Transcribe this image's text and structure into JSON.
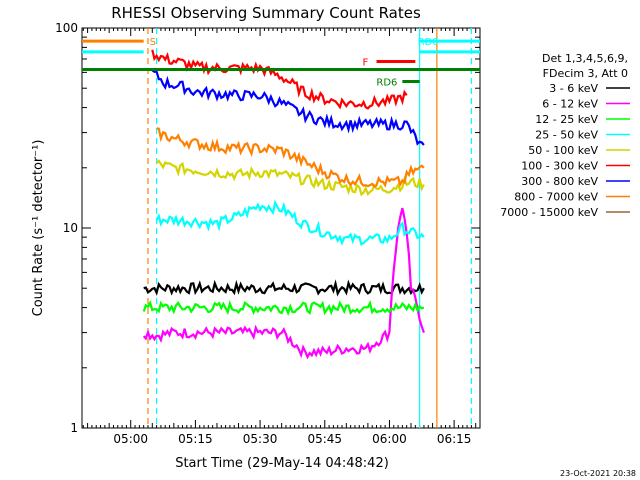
{
  "chart_data": {
    "type": "line",
    "title": "RHESSI Observing Summary Count Rates",
    "xlabel": "Start Time (29-May-14 04:48:42)",
    "ylabel": "Count Rate (s⁻¹ detector⁻¹)",
    "y_scale": "log",
    "ylim": [
      1,
      100
    ],
    "xlim": [
      "04:48:42",
      "06:21:00"
    ],
    "x_ticks": [
      "05:00",
      "05:15",
      "05:30",
      "05:45",
      "06:00",
      "06:15"
    ],
    "y_ticks": [
      "1",
      "10",
      "100"
    ],
    "legend": {
      "placement": "right",
      "header": [
        "Det 1,3,4,5,6,9,",
        "FDecim 3, Att 0"
      ]
    },
    "series": [
      {
        "name": "3 - 6 keV",
        "color": "#000000",
        "x": [
          "05:03",
          "05:06",
          "05:10",
          "05:15",
          "05:20",
          "05:25",
          "05:30",
          "05:35",
          "05:40",
          "05:45",
          "05:50",
          "05:55",
          "06:00",
          "06:05",
          "06:08"
        ],
        "y": [
          5,
          5,
          5,
          5,
          5,
          5,
          5,
          5,
          5,
          5,
          5,
          5,
          5,
          5,
          5
        ]
      },
      {
        "name": "6 - 12 keV",
        "color": "#ff00ff",
        "x": [
          "05:03",
          "05:06",
          "05:10",
          "05:15",
          "05:20",
          "05:25",
          "05:30",
          "05:35",
          "05:40",
          "05:45",
          "05:50",
          "05:55",
          "06:00",
          "06:03",
          "06:05",
          "06:08"
        ],
        "y": [
          3,
          2.9,
          3,
          3,
          3,
          3,
          3,
          3,
          2.4,
          2.4,
          2.5,
          2.5,
          3,
          13,
          5,
          3
        ]
      },
      {
        "name": "12 - 25 keV",
        "color": "#00ff00",
        "x": [
          "05:03",
          "05:06",
          "05:10",
          "05:15",
          "05:20",
          "05:25",
          "05:30",
          "05:35",
          "05:40",
          "05:45",
          "05:50",
          "05:55",
          "06:00",
          "06:05",
          "06:08"
        ],
        "y": [
          4,
          4,
          4,
          4,
          4,
          4,
          4,
          4,
          4,
          4,
          4,
          4,
          4,
          4,
          4
        ]
      },
      {
        "name": "25 - 50 keV",
        "color": "#00ffff",
        "x": [
          "05:06",
          "05:10",
          "05:15",
          "05:20",
          "05:25",
          "05:30",
          "05:35",
          "05:40",
          "05:45",
          "05:50",
          "05:55",
          "06:00",
          "06:03",
          "06:05",
          "06:08"
        ],
        "y": [
          11,
          11,
          10.8,
          10.5,
          11.5,
          13,
          12.5,
          10.5,
          9.5,
          8.8,
          8.8,
          8.8,
          10,
          9.5,
          9
        ]
      },
      {
        "name": "50 - 100 keV",
        "color": "#d4d400",
        "x": [
          "05:06",
          "05:10",
          "05:15",
          "05:20",
          "05:25",
          "05:30",
          "05:35",
          "05:40",
          "05:45",
          "05:50",
          "05:55",
          "06:00",
          "06:03",
          "06:05",
          "06:08"
        ],
        "y": [
          21,
          20,
          19.5,
          19,
          18.5,
          19,
          18.5,
          17.5,
          16.5,
          16,
          15.5,
          15.8,
          16.5,
          17,
          16.5
        ]
      },
      {
        "name": "100 - 300 keV",
        "color": "#ff0000",
        "x": [
          "05:05",
          "05:08",
          "05:12",
          "05:15",
          "05:20",
          "05:25",
          "05:30",
          "05:35",
          "05:40",
          "05:45",
          "05:50",
          "05:55",
          "06:00",
          "06:04"
        ],
        "y": [
          75,
          70,
          67,
          64,
          63,
          63,
          63,
          57,
          48,
          44,
          42,
          42,
          43,
          46
        ]
      },
      {
        "name": "300 - 800 keV",
        "color": "#0000ff",
        "x": [
          "05:05",
          "05:08",
          "05:12",
          "05:15",
          "05:20",
          "05:25",
          "05:30",
          "05:35",
          "05:40",
          "05:45",
          "05:50",
          "05:55",
          "06:00",
          "06:04",
          "06:07",
          "06:08"
        ],
        "y": [
          60,
          53,
          51,
          48,
          47,
          46,
          46,
          42,
          37,
          34,
          33,
          33,
          33,
          33,
          26,
          26
        ]
      },
      {
        "name": "800 - 7000 keV",
        "color": "#ff8000",
        "x": [
          "05:06",
          "05:10",
          "05:15",
          "05:20",
          "05:25",
          "05:30",
          "05:35",
          "05:40",
          "05:45",
          "05:50",
          "05:55",
          "06:00",
          "06:03",
          "06:05",
          "06:08"
        ],
        "y": [
          30,
          28,
          26.5,
          25.5,
          25,
          25,
          24.5,
          21.5,
          19,
          17.5,
          17,
          17,
          17,
          19,
          20
        ]
      },
      {
        "name": "7000 - 15000 keV",
        "color": "#996633",
        "x": [],
        "y": []
      }
    ],
    "markers": {
      "top_bars": [
        {
          "label": "S",
          "color": "#ff8000",
          "x_start": "04:48:42",
          "x_end": "05:03"
        },
        {
          "label": "F",
          "color": "#ff0000",
          "x_start": "05:57",
          "x_end": "06:06"
        },
        {
          "label": "RD0",
          "color": "#00ffff",
          "x_start": "06:07",
          "x_end": "06:21"
        },
        {
          "label": "RD6",
          "color": "#008000",
          "x_start": "06:03",
          "x_end": "06:07"
        }
      ],
      "green_level": 62,
      "cyan_level": 76,
      "vertical_lines": [
        {
          "color": "#ff8000",
          "style": "dashed",
          "x": "05:04"
        },
        {
          "color": "#00ffff",
          "style": "dashed",
          "x": "05:06"
        },
        {
          "color": "#00ffff",
          "style": "solid",
          "x": "06:07"
        },
        {
          "color": "#00ffff",
          "style": "dashed",
          "x": "06:19"
        },
        {
          "color": "#ff8000",
          "style": "solid",
          "x": "06:11"
        }
      ]
    }
  },
  "timestamp": "23-Oct-2021 20:38"
}
